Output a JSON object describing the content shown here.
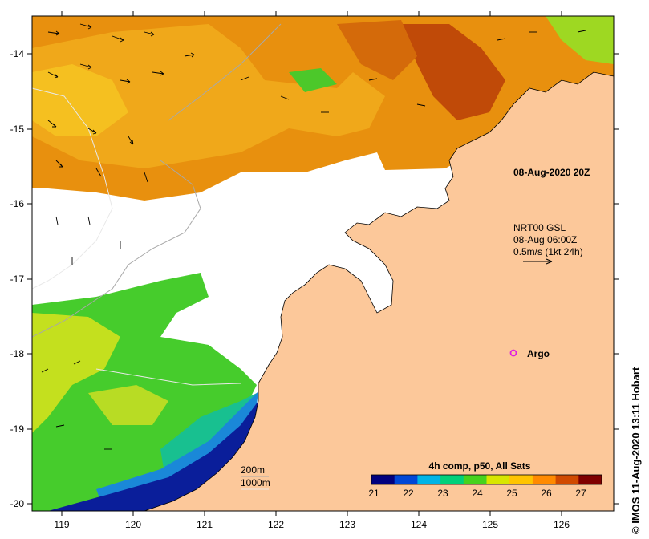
{
  "map": {
    "lon_ticks": [
      "119",
      "120",
      "121",
      "122",
      "123",
      "124",
      "125",
      "126"
    ],
    "lat_ticks": [
      "-14",
      "-15",
      "-16",
      "-17",
      "-18",
      "-19",
      "-20"
    ],
    "timestamp": "08-Aug-2020 20Z",
    "current_legend": {
      "line1": "NRT00 GSL",
      "line2": "08-Aug 06:00Z",
      "line3": "0.5m/s (1kt 24h)"
    },
    "argo_label": "Argo",
    "bathymetry_legend": {
      "contour1": "200m",
      "contour2": "1000m"
    },
    "colorbar": {
      "title": "4h comp, p50, All Sats",
      "ticks": [
        "21",
        "22",
        "23",
        "24",
        "25",
        "26",
        "27"
      ],
      "colors": [
        "#00007f",
        "#0047d6",
        "#00b4e6",
        "#00d07a",
        "#46d21e",
        "#d8e600",
        "#ffc400",
        "#ff8a00",
        "#d04a00",
        "#7f0000"
      ]
    },
    "credit": "IMOS 11-Aug-2020 13:11 Hobart",
    "colors": {
      "land": "#fcc89a",
      "cloud": "#ffffff",
      "warm": "#e88c10",
      "hot": "#c0500a",
      "cool_green": "#3fcf2a",
      "yellow_green": "#c8e01a",
      "deep_blue": "#0a1e9a",
      "mid_blue": "#1a8ad8",
      "argo": "#e020e0"
    }
  }
}
